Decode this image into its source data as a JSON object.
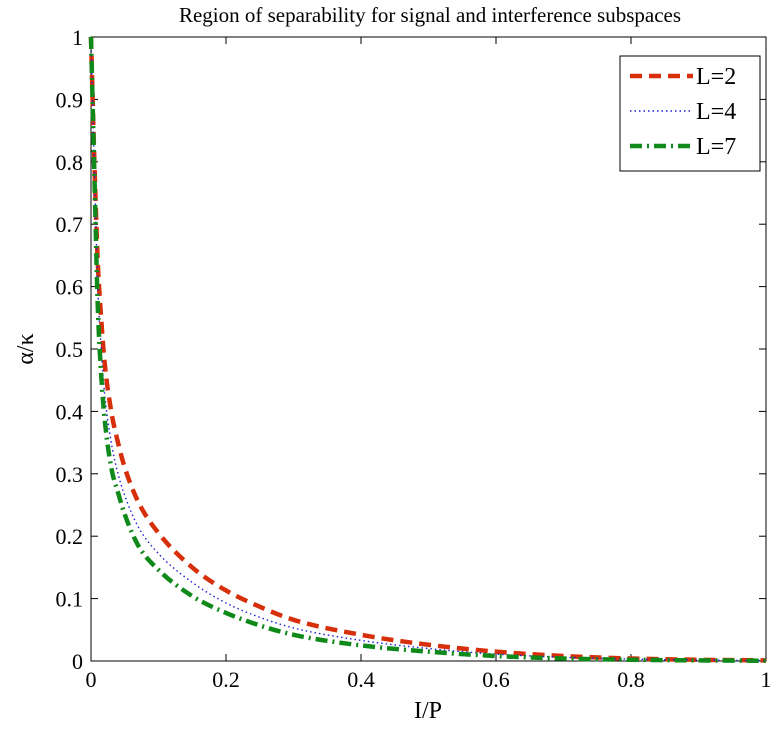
{
  "chart_data": {
    "type": "line",
    "title": "Region of separability for signal and interference subspaces",
    "xlabel": "I/P",
    "ylabel": "α/κ",
    "xlim": [
      0,
      1
    ],
    "ylim": [
      0,
      1
    ],
    "x_ticks": [
      0,
      0.2,
      0.4,
      0.6,
      0.8,
      1
    ],
    "x_tick_labels": [
      "0",
      "0.2",
      "0.4",
      "0.6",
      "0.8",
      "1"
    ],
    "y_ticks": [
      0,
      0.1,
      0.2,
      0.3,
      0.4,
      0.5,
      0.6,
      0.7,
      0.8,
      0.9,
      1
    ],
    "y_tick_labels": [
      "0",
      "0.1",
      "0.2",
      "0.3",
      "0.4",
      "0.5",
      "0.6",
      "0.7",
      "0.8",
      "0.9",
      "1"
    ],
    "grid": false,
    "legend_position": "top-right",
    "x": [
      0,
      0.005,
      0.01,
      0.015,
      0.02,
      0.03,
      0.04,
      0.05,
      0.07,
      0.1,
      0.15,
      0.2,
      0.25,
      0.3,
      0.4,
      0.5,
      0.6,
      0.7,
      0.8,
      0.9,
      1.0
    ],
    "series": [
      {
        "name": "L=2",
        "color": "#d62f0a",
        "style": "dashed",
        "values": [
          1.0,
          0.8,
          0.64,
          0.55,
          0.48,
          0.4,
          0.35,
          0.31,
          0.255,
          0.205,
          0.15,
          0.113,
          0.087,
          0.066,
          0.042,
          0.026,
          0.015,
          0.008,
          0.004,
          0.002,
          0.001
        ]
      },
      {
        "name": "L=4",
        "color": "#1f1fd6",
        "style": "dotted",
        "values": [
          1.0,
          0.79,
          0.6,
          0.5,
          0.43,
          0.35,
          0.3,
          0.265,
          0.215,
          0.172,
          0.126,
          0.093,
          0.07,
          0.053,
          0.033,
          0.02,
          0.011,
          0.006,
          0.003,
          0.0015,
          0.0005
        ]
      },
      {
        "name": "L=7",
        "color": "#0f8a1a",
        "style": "dashdot",
        "values": [
          1.0,
          0.78,
          0.57,
          0.46,
          0.39,
          0.31,
          0.27,
          0.235,
          0.185,
          0.146,
          0.104,
          0.077,
          0.057,
          0.042,
          0.025,
          0.015,
          0.008,
          0.004,
          0.002,
          0.001,
          0.0004
        ]
      }
    ]
  }
}
